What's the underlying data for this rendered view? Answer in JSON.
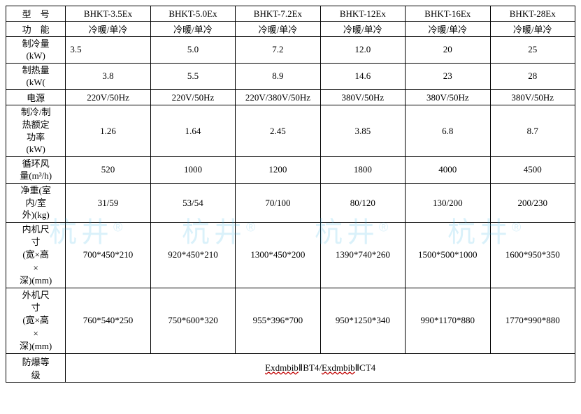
{
  "table": {
    "headers": {
      "model": "型　号",
      "function": "功　能",
      "cooling_capacity": "制冷量\n(kW)",
      "heating_capacity": "制热量\n(kW(",
      "power_source": "电源",
      "rated_power": "制冷/制\n热额定\n功率\n(kW)",
      "airflow": "循环风\n量(m³/h)",
      "net_weight": "净重(室\n内/室\n外)(kg)",
      "indoor_size": "内机尺\n寸\n(宽×高\n×\n深)(mm)",
      "outdoor_size": "外机尺\n寸\n(宽×高\n×\n深)(mm)",
      "explosion_grade": "防爆等\n级"
    },
    "columns": [
      "BHKT-3.5Ex",
      "BHKT-5.0Ex",
      "BHKT-7.2Ex",
      "BHKT-12Ex",
      "BHKT-16Ex",
      "BHKT-28Ex"
    ],
    "rows": {
      "function": [
        "冷暖/单冷",
        "冷暖/单冷",
        "冷暖/单冷",
        "冷暖/单冷",
        "冷暖/单冷",
        "冷暖/单冷"
      ],
      "cooling_capacity": [
        "3.5",
        "5.0",
        "7.2",
        "12.0",
        "20",
        "25"
      ],
      "heating_capacity": [
        "3.8",
        "5.5",
        "8.9",
        "14.6",
        "23",
        "28"
      ],
      "power_source": [
        "220V/50Hz",
        "220V/50Hz",
        "220V/380V/50Hz",
        "380V/50Hz",
        "380V/50Hz",
        "380V/50Hz"
      ],
      "rated_power": [
        "1.26",
        "1.64",
        "2.45",
        "3.85",
        "6.8",
        "8.7"
      ],
      "airflow": [
        "520",
        "1000",
        "1200",
        "1800",
        "4000",
        "4500"
      ],
      "net_weight": [
        "31/59",
        "53/54",
        "70/100",
        "80/120",
        "130/200",
        "200/230"
      ],
      "indoor_size": [
        "700*450*210",
        "920*450*210",
        "1300*450*200",
        "1390*740*260",
        "1500*500*1000",
        "1600*950*350"
      ],
      "outdoor_size": [
        "760*540*250",
        "750*600*320",
        "955*396*700",
        "950*1250*340",
        "990*1170*880",
        "1770*990*880"
      ]
    },
    "explosion_grade_value": {
      "part1": "Exdmbib",
      "roman1": "Ⅱ",
      "part2": "BT4/",
      "part3": "Exdmbib",
      "roman2": "Ⅱ",
      "part4": "CT4"
    }
  },
  "watermark": {
    "text": "杭井",
    "dot": "®"
  }
}
